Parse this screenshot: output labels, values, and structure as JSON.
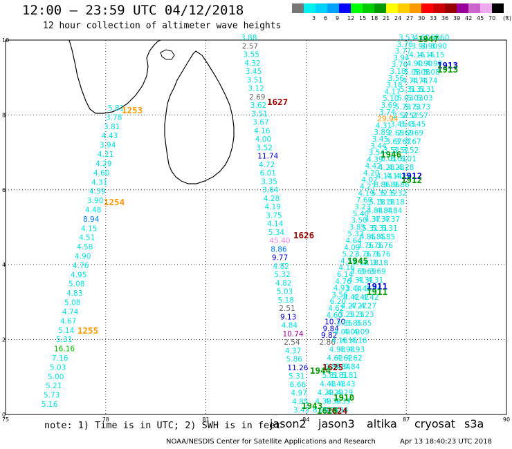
{
  "header": {
    "title": "12:00 – 23:59 UTC 04/12/2018",
    "subtitle": "12 hour collection of altimeter wave heights"
  },
  "colorbar": {
    "unit": "(ft)",
    "bins": [
      {
        "color": "#777777",
        "label": ""
      },
      {
        "color": "#00f0f0",
        "label": "3"
      },
      {
        "color": "#00d0ff",
        "label": "6"
      },
      {
        "color": "#00a0ff",
        "label": "9"
      },
      {
        "color": "#0000ff",
        "label": "12"
      },
      {
        "color": "#00ff00",
        "label": "15"
      },
      {
        "color": "#00cc00",
        "label": "18"
      },
      {
        "color": "#009900",
        "label": "21"
      },
      {
        "color": "#ffff00",
        "label": "24"
      },
      {
        "color": "#ffcc00",
        "label": "27"
      },
      {
        "color": "#ff9900",
        "label": "30"
      },
      {
        "color": "#ff0000",
        "label": "33"
      },
      {
        "color": "#cc0000",
        "label": "36"
      },
      {
        "color": "#990000",
        "label": "39"
      },
      {
        "color": "#990099",
        "label": "42"
      },
      {
        "color": "#cc66cc",
        "label": "45"
      },
      {
        "color": "#eeaaee",
        "label": "70"
      },
      {
        "color": "#000000",
        "label": ""
      }
    ]
  },
  "map": {
    "lon_ticks": [
      "75",
      "78",
      "81",
      "84",
      "87",
      "90"
    ],
    "lat_ticks": [
      "0",
      "2",
      "4",
      "6",
      "8",
      "10"
    ],
    "lon_range": [
      75,
      90
    ],
    "lat_range": [
      0,
      10
    ],
    "times": [
      {
        "label": "1253",
        "color": "#ff9900"
      },
      {
        "label": "1254",
        "color": "#ff9900"
      },
      {
        "label": "1255",
        "color": "#ff9900"
      },
      {
        "label": "1627",
        "color": "#990000"
      },
      {
        "label": "1626",
        "color": "#990000"
      },
      {
        "label": "1625",
        "color": "#990000"
      },
      {
        "label": "1624",
        "color": "#990000"
      },
      {
        "label": "1947",
        "color": "#009900"
      },
      {
        "label": "1946",
        "color": "#009900"
      },
      {
        "label": "1945",
        "color": "#009900"
      },
      {
        "label": "1944",
        "color": "#009900"
      },
      {
        "label": "1943",
        "color": "#009900"
      },
      {
        "label": "1913",
        "color": "#0000cc"
      },
      {
        "label": "1913",
        "color": "#009900"
      },
      {
        "label": "1912",
        "color": "#0000cc"
      },
      {
        "label": "1912",
        "color": "#009900"
      },
      {
        "label": "1911",
        "color": "#0000cc"
      },
      {
        "label": "1911",
        "color": "#009900"
      },
      {
        "label": "1910",
        "color": "#009900"
      },
      {
        "label": "1624",
        "color": "#009900"
      }
    ],
    "observations": [
      {
        "v": "5.81",
        "c": "#00e0e0"
      },
      {
        "v": "3.78",
        "c": "#00e0e0"
      },
      {
        "v": "3.81",
        "c": "#00e0e0"
      },
      {
        "v": "4.43",
        "c": "#00e0e0"
      },
      {
        "v": "3.94",
        "c": "#00e0e0"
      },
      {
        "v": "4.21",
        "c": "#00e0e0"
      },
      {
        "v": "4.29",
        "c": "#00e0e0"
      },
      {
        "v": "4.60",
        "c": "#00e0e0"
      },
      {
        "v": "4.31",
        "c": "#00e0e0"
      },
      {
        "v": "4.39",
        "c": "#00e0e0"
      },
      {
        "v": "3.90",
        "c": "#00e0e0"
      },
      {
        "v": "4.48",
        "c": "#00e0e0"
      },
      {
        "v": "8.94",
        "c": "#0077ff"
      },
      {
        "v": "4.15",
        "c": "#00e0e0"
      },
      {
        "v": "4.51",
        "c": "#00e0e0"
      },
      {
        "v": "4.58",
        "c": "#00e0e0"
      },
      {
        "v": "4.90",
        "c": "#00e0e0"
      },
      {
        "v": "4.76",
        "c": "#00e0e0"
      },
      {
        "v": "4.95",
        "c": "#00e0e0"
      },
      {
        "v": "5.08",
        "c": "#00e0e0"
      },
      {
        "v": "4.83",
        "c": "#00e0e0"
      },
      {
        "v": "5.08",
        "c": "#00e0e0"
      },
      {
        "v": "4.74",
        "c": "#00e0e0"
      },
      {
        "v": "4.67",
        "c": "#00e0e0"
      },
      {
        "v": "5.14",
        "c": "#00e0e0"
      },
      {
        "v": "5.31",
        "c": "#00e0e0"
      },
      {
        "v": "16.16",
        "c": "#00bb00"
      },
      {
        "v": "7.16",
        "c": "#00e0e0"
      },
      {
        "v": "5.03",
        "c": "#00e0e0"
      },
      {
        "v": "5.00",
        "c": "#00e0e0"
      },
      {
        "v": "5.21",
        "c": "#00e0e0"
      },
      {
        "v": "5.73",
        "c": "#00e0e0"
      },
      {
        "v": "5.16",
        "c": "#00e0e0"
      },
      {
        "v": "3.88",
        "c": "#00e0e0"
      },
      {
        "v": "2.57",
        "c": "#666666"
      },
      {
        "v": "3.55",
        "c": "#00e0e0"
      },
      {
        "v": "4.32",
        "c": "#00e0e0"
      },
      {
        "v": "3.45",
        "c": "#00e0e0"
      },
      {
        "v": "3.51",
        "c": "#00e0e0"
      },
      {
        "v": "3.12",
        "c": "#00e0e0"
      },
      {
        "v": "2.69",
        "c": "#666666"
      },
      {
        "v": "3.62",
        "c": "#00e0e0"
      },
      {
        "v": "3.51",
        "c": "#00e0e0"
      },
      {
        "v": "3.67",
        "c": "#00e0e0"
      },
      {
        "v": "4.16",
        "c": "#00e0e0"
      },
      {
        "v": "4.00",
        "c": "#00e0e0"
      },
      {
        "v": "3.52",
        "c": "#00e0e0"
      },
      {
        "v": "11.74",
        "c": "#0000cc"
      },
      {
        "v": "4.72",
        "c": "#00e0e0"
      },
      {
        "v": "6.01",
        "c": "#00e0e0"
      },
      {
        "v": "3.35",
        "c": "#00e0e0"
      },
      {
        "v": "3.64",
        "c": "#00e0e0"
      },
      {
        "v": "4.28",
        "c": "#00e0e0"
      },
      {
        "v": "4.19",
        "c": "#00e0e0"
      },
      {
        "v": "3.75",
        "c": "#00e0e0"
      },
      {
        "v": "4.14",
        "c": "#00e0e0"
      },
      {
        "v": "5.34",
        "c": "#00e0e0"
      },
      {
        "v": "45.40",
        "c": "#ee88ee"
      },
      {
        "v": "8.86",
        "c": "#0077ff"
      },
      {
        "v": "9.77",
        "c": "#0000cc"
      },
      {
        "v": "4.82",
        "c": "#00e0e0"
      },
      {
        "v": "5.32",
        "c": "#00e0e0"
      },
      {
        "v": "4.82",
        "c": "#00e0e0"
      },
      {
        "v": "5.03",
        "c": "#00e0e0"
      },
      {
        "v": "5.18",
        "c": "#00e0e0"
      },
      {
        "v": "2.51",
        "c": "#666666"
      },
      {
        "v": "9.13",
        "c": "#0000cc"
      },
      {
        "v": "4.84",
        "c": "#00e0e0"
      },
      {
        "v": "10.74",
        "c": "#990099"
      },
      {
        "v": "2.54",
        "c": "#666666"
      },
      {
        "v": "4.37",
        "c": "#00e0e0"
      },
      {
        "v": "5.86",
        "c": "#00e0e0"
      },
      {
        "v": "11.26",
        "c": "#0000cc"
      },
      {
        "v": "5.31",
        "c": "#00e0e0"
      },
      {
        "v": "6.66",
        "c": "#00e0e0"
      },
      {
        "v": "4.97",
        "c": "#00e0e0"
      },
      {
        "v": "4.85",
        "c": "#00e0e0"
      },
      {
        "v": "3.43",
        "c": "#00e0e0"
      },
      {
        "v": "3.53",
        "c": "#00e0e0"
      },
      {
        "v": "3.76",
        "c": "#00e0e0"
      },
      {
        "v": "3.77",
        "c": "#00e0e0"
      },
      {
        "v": "3.94",
        "c": "#00e0e0"
      },
      {
        "v": "3.76",
        "c": "#00e0e0"
      },
      {
        "v": "3.18",
        "c": "#00e0e0"
      },
      {
        "v": "3.56",
        "c": "#00e0e0"
      },
      {
        "v": "3.18",
        "c": "#00e0e0"
      },
      {
        "v": "4.17",
        "c": "#00e0e0"
      },
      {
        "v": "5.10",
        "c": "#00e0e0"
      },
      {
        "v": "3.69",
        "c": "#00e0e0"
      },
      {
        "v": "3.74",
        "c": "#00e0e0"
      },
      {
        "v": "29.94",
        "c": "#ff9900"
      },
      {
        "v": "4.31",
        "c": "#00e0e0"
      },
      {
        "v": "3.89",
        "c": "#00e0e0"
      },
      {
        "v": "3.45",
        "c": "#00e0e0"
      },
      {
        "v": "3.44",
        "c": "#00e0e0"
      },
      {
        "v": "3.54",
        "c": "#00e0e0"
      },
      {
        "v": "4.39",
        "c": "#00e0e0"
      },
      {
        "v": "4.42",
        "c": "#00e0e0"
      },
      {
        "v": "4.20",
        "c": "#00e0e0"
      },
      {
        "v": "4.02",
        "c": "#00e0e0"
      },
      {
        "v": "4.27",
        "c": "#00e0e0"
      },
      {
        "v": "4.19",
        "c": "#00e0e0"
      },
      {
        "v": "7.60",
        "c": "#00e0e0"
      },
      {
        "v": "3.23",
        "c": "#00e0e0"
      },
      {
        "v": "5.40",
        "c": "#00e0e0"
      },
      {
        "v": "3.50",
        "c": "#00e0e0"
      },
      {
        "v": "3.85",
        "c": "#00e0e0"
      },
      {
        "v": "5.32",
        "c": "#00e0e0"
      },
      {
        "v": "4.64",
        "c": "#00e0e0"
      },
      {
        "v": "4.09",
        "c": "#00e0e0"
      },
      {
        "v": "5.27",
        "c": "#00e0e0"
      },
      {
        "v": "4.59",
        "c": "#00e0e0"
      },
      {
        "v": "4.16",
        "c": "#00e0e0"
      },
      {
        "v": "6.14",
        "c": "#00e0e0"
      },
      {
        "v": "4.76",
        "c": "#00e0e0"
      },
      {
        "v": "4.93",
        "c": "#00e0e0"
      },
      {
        "v": "3.56",
        "c": "#00e0e0"
      },
      {
        "v": "6.20",
        "c": "#00e0e0"
      },
      {
        "v": "4.62",
        "c": "#00e0e0"
      },
      {
        "v": "4.60",
        "c": "#00e0e0"
      },
      {
        "v": "10.70",
        "c": "#0000cc"
      },
      {
        "v": "9.84",
        "c": "#0000cc"
      },
      {
        "v": "9.82",
        "c": "#0000cc"
      },
      {
        "v": "2.86",
        "c": "#666666"
      }
    ]
  },
  "footer": {
    "note": "note: 1) Time is in UTC; 2) SWH is in feet",
    "satellites": [
      {
        "name": "jason2",
        "color": "#0000ee"
      },
      {
        "name": "jason3",
        "color": "#00aa00"
      },
      {
        "name": "altika",
        "color": "#ff9900"
      },
      {
        "name": "cryosat",
        "color": "#ee0000"
      },
      {
        "name": "s3a",
        "color": "#990000"
      }
    ],
    "credit": "NOAA/NESDIS Center for Satellite Applications and Research",
    "timestamp": "Apr 13 18:40:23 UTC 2018"
  }
}
